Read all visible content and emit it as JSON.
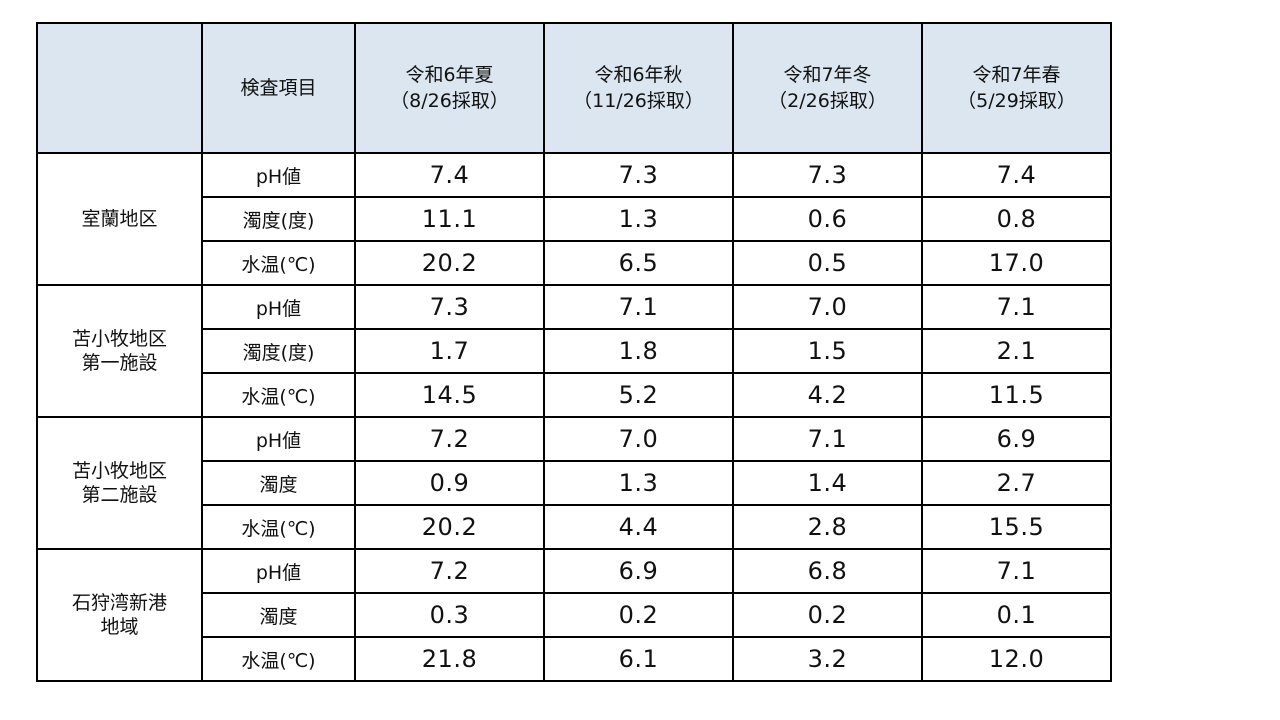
{
  "header": {
    "region_blank": "",
    "item_label": "検査項目",
    "seasons": [
      {
        "line1": "令和6年夏",
        "line2": "（8/26採取）"
      },
      {
        "line1": "令和6年秋",
        "line2": "（11/26採取）"
      },
      {
        "line1": "令和7年冬",
        "line2": "（2/26採取）"
      },
      {
        "line1": "令和7年春",
        "line2": "（5/29採取）"
      }
    ]
  },
  "regions": [
    {
      "name_line1": "室蘭地区",
      "name_line2": "",
      "rows": [
        {
          "item": "pH値",
          "values": [
            "7.4",
            "7.3",
            "7.3",
            "7.4"
          ]
        },
        {
          "item": "濁度(度)",
          "values": [
            "11.1",
            "1.3",
            "0.6",
            "0.8"
          ]
        },
        {
          "item": "水温(℃)",
          "values": [
            "20.2",
            "6.5",
            "0.5",
            "17.0"
          ]
        }
      ]
    },
    {
      "name_line1": "苫小牧地区",
      "name_line2": "第一施設",
      "rows": [
        {
          "item": "pH値",
          "values": [
            "7.3",
            "7.1",
            "7.0",
            "7.1"
          ]
        },
        {
          "item": "濁度(度)",
          "values": [
            "1.7",
            "1.8",
            "1.5",
            "2.1"
          ]
        },
        {
          "item": "水温(℃)",
          "values": [
            "14.5",
            "5.2",
            "4.2",
            "11.5"
          ]
        }
      ]
    },
    {
      "name_line1": "苫小牧地区",
      "name_line2": "第二施設",
      "rows": [
        {
          "item": "pH値",
          "values": [
            "7.2",
            "7.0",
            "7.1",
            "6.9"
          ]
        },
        {
          "item": "濁度",
          "values": [
            "0.9",
            "1.3",
            "1.4",
            "2.7"
          ]
        },
        {
          "item": "水温(℃)",
          "values": [
            "20.2",
            "4.4",
            "2.8",
            "15.5"
          ]
        }
      ]
    },
    {
      "name_line1": "石狩湾新港",
      "name_line2": "地域",
      "rows": [
        {
          "item": "pH値",
          "values": [
            "7.2",
            "6.9",
            "6.8",
            "7.1"
          ]
        },
        {
          "item": "濁度",
          "values": [
            "0.3",
            "0.2",
            "0.2",
            "0.1"
          ]
        },
        {
          "item": "水温(℃)",
          "values": [
            "21.8",
            "6.1",
            "3.2",
            "12.0"
          ]
        }
      ]
    }
  ],
  "colors": {
    "header_bg": "#dce6f0",
    "border": "#000000"
  }
}
